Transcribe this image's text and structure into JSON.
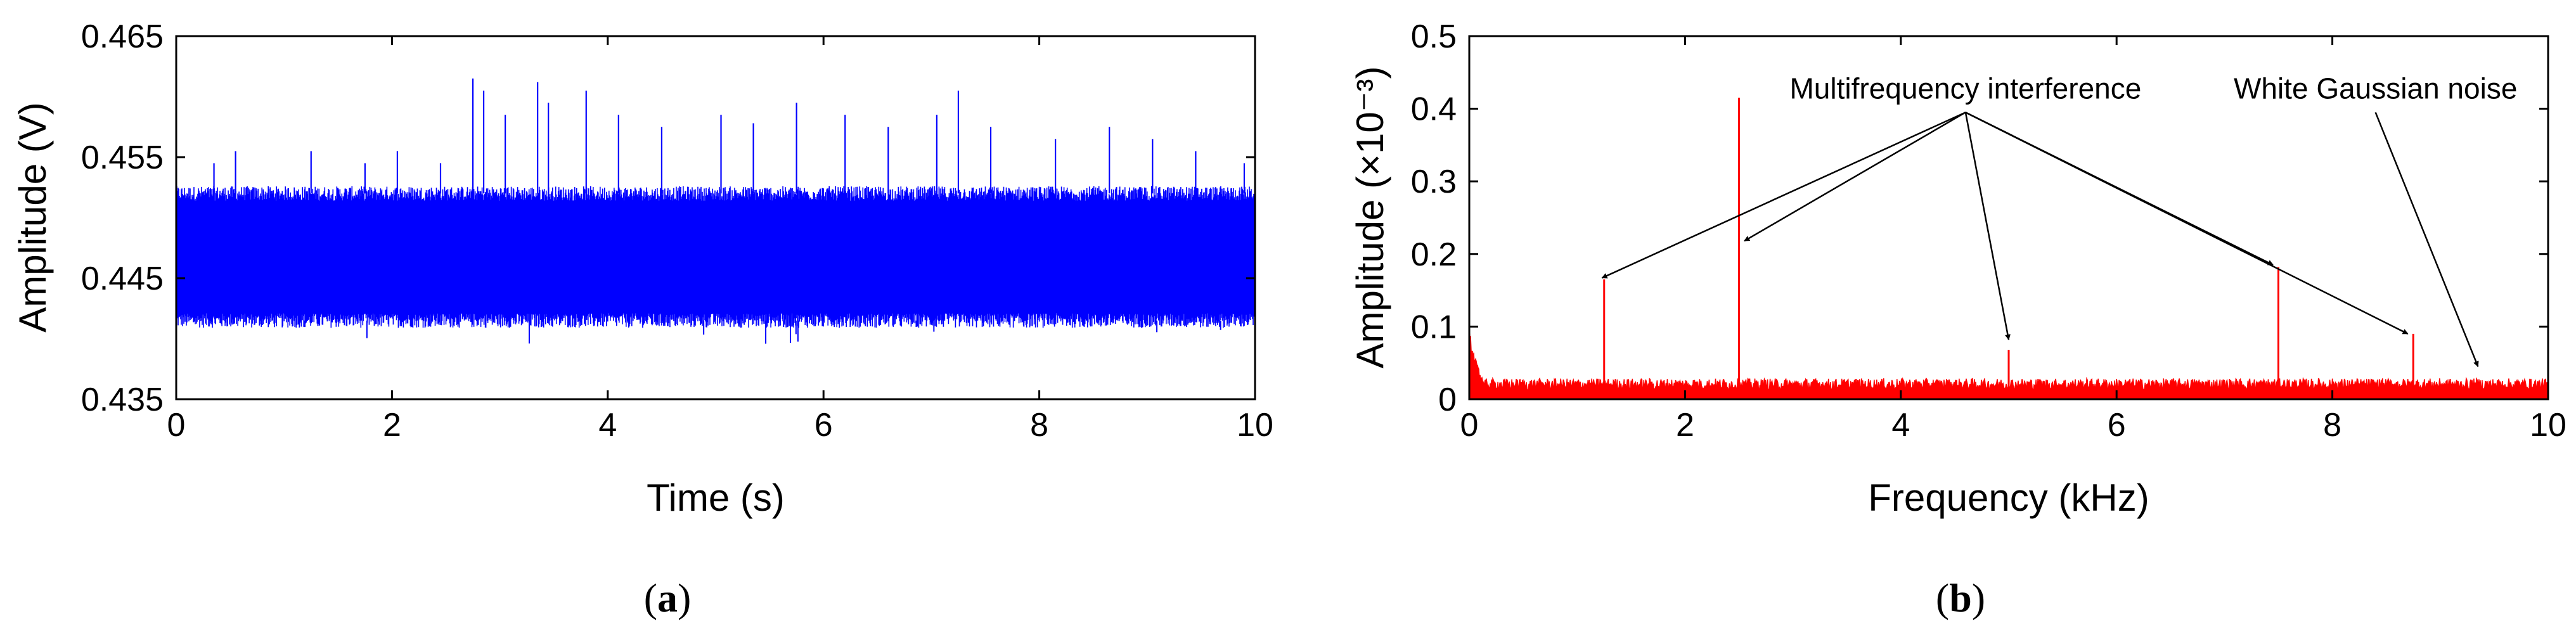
{
  "chart_data": [
    {
      "type": "line",
      "panel_label": "a",
      "xlabel": "Time (s)",
      "ylabel": "Amplitude (V)",
      "xlim": [
        0,
        10
      ],
      "ylim": [
        0.435,
        0.465
      ],
      "x_ticks": [
        0,
        2,
        4,
        6,
        8,
        10
      ],
      "y_ticks": [
        0.435,
        0.445,
        0.455,
        0.465
      ],
      "x_tick_labels": [
        "0",
        "2",
        "4",
        "6",
        "8",
        "10"
      ],
      "y_tick_labels": [
        "0.435",
        "0.445",
        "0.455",
        "0.465"
      ],
      "series": [
        {
          "color": "#0000ff",
          "baseline": 0.447,
          "noise_band": [
            0.4415,
            0.452
          ],
          "min_value": 0.4395,
          "spikes": [
            {
              "x": 0.35,
              "y": 0.4545
            },
            {
              "x": 0.55,
              "y": 0.4555
            },
            {
              "x": 1.25,
              "y": 0.4555
            },
            {
              "x": 1.75,
              "y": 0.4545
            },
            {
              "x": 2.05,
              "y": 0.4555
            },
            {
              "x": 2.45,
              "y": 0.4545
            },
            {
              "x": 2.75,
              "y": 0.4615
            },
            {
              "x": 2.85,
              "y": 0.4605
            },
            {
              "x": 3.05,
              "y": 0.4585
            },
            {
              "x": 3.35,
              "y": 0.4612
            },
            {
              "x": 3.45,
              "y": 0.4595
            },
            {
              "x": 3.8,
              "y": 0.4605
            },
            {
              "x": 4.1,
              "y": 0.4585
            },
            {
              "x": 4.5,
              "y": 0.4575
            },
            {
              "x": 5.05,
              "y": 0.4585
            },
            {
              "x": 5.35,
              "y": 0.4578
            },
            {
              "x": 5.75,
              "y": 0.4595
            },
            {
              "x": 6.2,
              "y": 0.4585
            },
            {
              "x": 6.6,
              "y": 0.4575
            },
            {
              "x": 7.05,
              "y": 0.4585
            },
            {
              "x": 7.25,
              "y": 0.4605
            },
            {
              "x": 7.55,
              "y": 0.4575
            },
            {
              "x": 8.15,
              "y": 0.4565
            },
            {
              "x": 8.65,
              "y": 0.4575
            },
            {
              "x": 9.05,
              "y": 0.4565
            },
            {
              "x": 9.45,
              "y": 0.4555
            },
            {
              "x": 9.9,
              "y": 0.4545
            }
          ]
        }
      ]
    },
    {
      "type": "line",
      "panel_label": "b",
      "xlabel": "Frequency (kHz)",
      "ylabel": "Amplitude (×10⁻³)",
      "xlim": [
        0,
        10
      ],
      "ylim": [
        0,
        0.5
      ],
      "x_ticks": [
        0,
        2,
        4,
        6,
        8,
        10
      ],
      "y_ticks": [
        0,
        0.1,
        0.2,
        0.3,
        0.4,
        0.5
      ],
      "x_tick_labels": [
        "0",
        "2",
        "4",
        "6",
        "8",
        "10"
      ],
      "y_tick_labels": [
        "0",
        "0.1",
        "0.2",
        "0.3",
        "0.4",
        "0.5"
      ],
      "series": [
        {
          "color": "#ff0000",
          "noise_floor": 0.022,
          "low_freq_rise": 0.1,
          "peaks": [
            {
              "x": 1.25,
              "y": 0.165
            },
            {
              "x": 2.5,
              "y": 0.415
            },
            {
              "x": 5.0,
              "y": 0.068
            },
            {
              "x": 7.5,
              "y": 0.182
            },
            {
              "x": 8.75,
              "y": 0.09
            }
          ]
        }
      ],
      "annotations": [
        {
          "text": "Multifrequency interference",
          "anchor_x_khz": 4.6,
          "anchor_y": 0.395,
          "targets": [
            {
              "x": 1.23,
              "y": 0.167
            },
            {
              "x": 2.55,
              "y": 0.218
            },
            {
              "x": 5.0,
              "y": 0.082
            },
            {
              "x": 7.45,
              "y": 0.185
            },
            {
              "x": 8.7,
              "y": 0.09
            }
          ]
        },
        {
          "text": "White Gaussian noise",
          "anchor_x_khz": 8.4,
          "anchor_y": 0.395,
          "targets": [
            {
              "x": 9.35,
              "y": 0.045
            }
          ]
        }
      ]
    }
  ]
}
